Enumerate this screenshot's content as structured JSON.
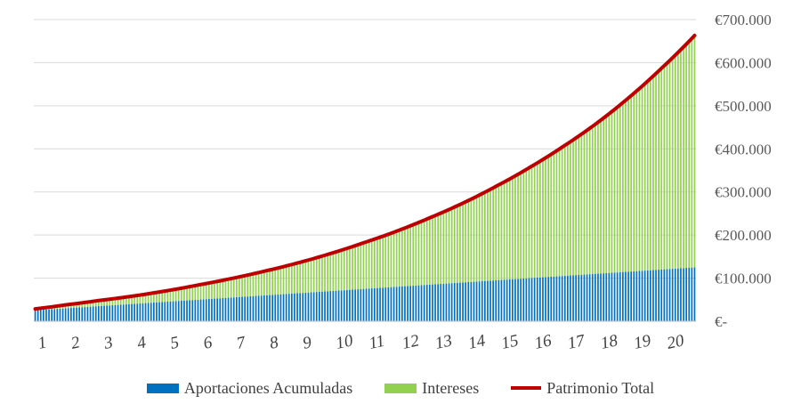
{
  "chart_data": {
    "type": "bar",
    "stacked": true,
    "xlabel": "",
    "ylabel": "",
    "title": "",
    "x_tick_labels": [
      "1",
      "2",
      "3",
      "4",
      "5",
      "6",
      "7",
      "8",
      "9",
      "10",
      "11",
      "12",
      "13",
      "14",
      "15",
      "16",
      "17",
      "18",
      "19",
      "20"
    ],
    "y_tick_labels": [
      "€-",
      "€100.000",
      "€200.000",
      "€300.000",
      "€400.000",
      "€500.000",
      "€600.000",
      "€700.000"
    ],
    "ylim": [
      0,
      700000
    ],
    "y_axis_position": "right",
    "grid": true,
    "legend_position": "bottom",
    "months": 240,
    "annual_points": {
      "year": [
        0,
        1,
        2,
        3,
        4,
        5,
        6,
        7,
        8,
        9,
        10,
        11,
        12,
        13,
        14,
        15,
        16,
        17,
        18,
        19,
        20
      ],
      "aportaciones_acumuladas": [
        25000,
        30000,
        35000,
        40000,
        45000,
        50000,
        55000,
        60000,
        65000,
        70000,
        75000,
        80000,
        85000,
        90000,
        95000,
        100000,
        105000,
        110000,
        115000,
        120000,
        125000
      ],
      "patrimonio_total": [
        28000,
        38000,
        48000,
        58000,
        70000,
        84000,
        99000,
        116000,
        135000,
        157000,
        182000,
        209000,
        240000,
        274000,
        313000,
        356000,
        404000,
        457000,
        518000,
        587000,
        663000
      ]
    },
    "series": [
      {
        "name": "Aportaciones Acumuladas",
        "color": "#0070c0"
      },
      {
        "name": "Intereses",
        "color": "#92d050"
      },
      {
        "name": "Patrimonio Total",
        "color": "#c00000"
      }
    ]
  },
  "legend": {
    "items": [
      {
        "label": "Aportaciones Acumuladas",
        "color": "#0070c0",
        "kind": "box"
      },
      {
        "label": "Intereses",
        "color": "#92d050",
        "kind": "box"
      },
      {
        "label": "Patrimonio Total",
        "color": "#c00000",
        "kind": "line"
      }
    ]
  }
}
